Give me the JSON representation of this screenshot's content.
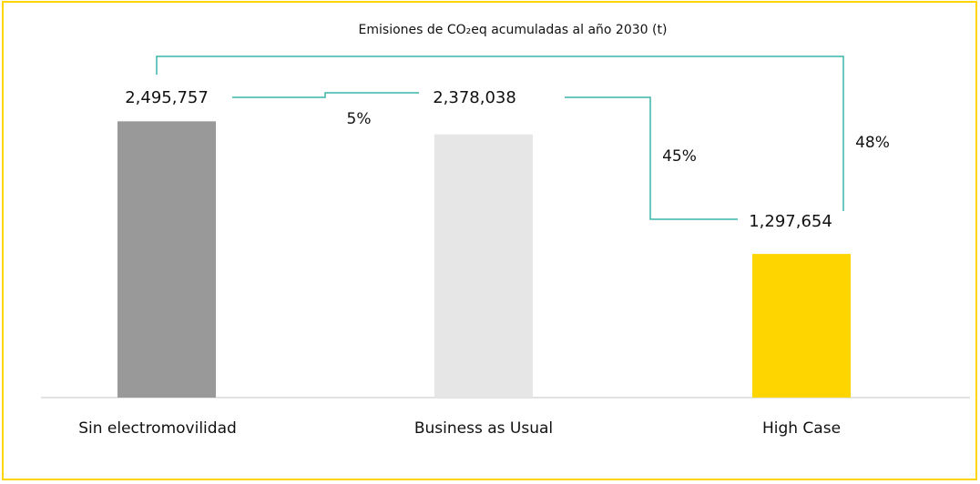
{
  "chart_data": {
    "type": "bar",
    "title": "Emisiones de CO₂eq acumuladas al año 2030 (t)",
    "categories": [
      "Sin electromovilidad",
      "Business as Usual",
      "High Case"
    ],
    "values": [
      2495757,
      2378038,
      1297654
    ],
    "value_labels": [
      "2,495,757",
      "2,378,038",
      "1,297,654"
    ],
    "colors": [
      "#999999",
      "#e6e6e6",
      "#ffd500"
    ],
    "ylim": [
      0,
      3000000
    ],
    "annotations": [
      "5%",
      "45%",
      "48%"
    ]
  }
}
